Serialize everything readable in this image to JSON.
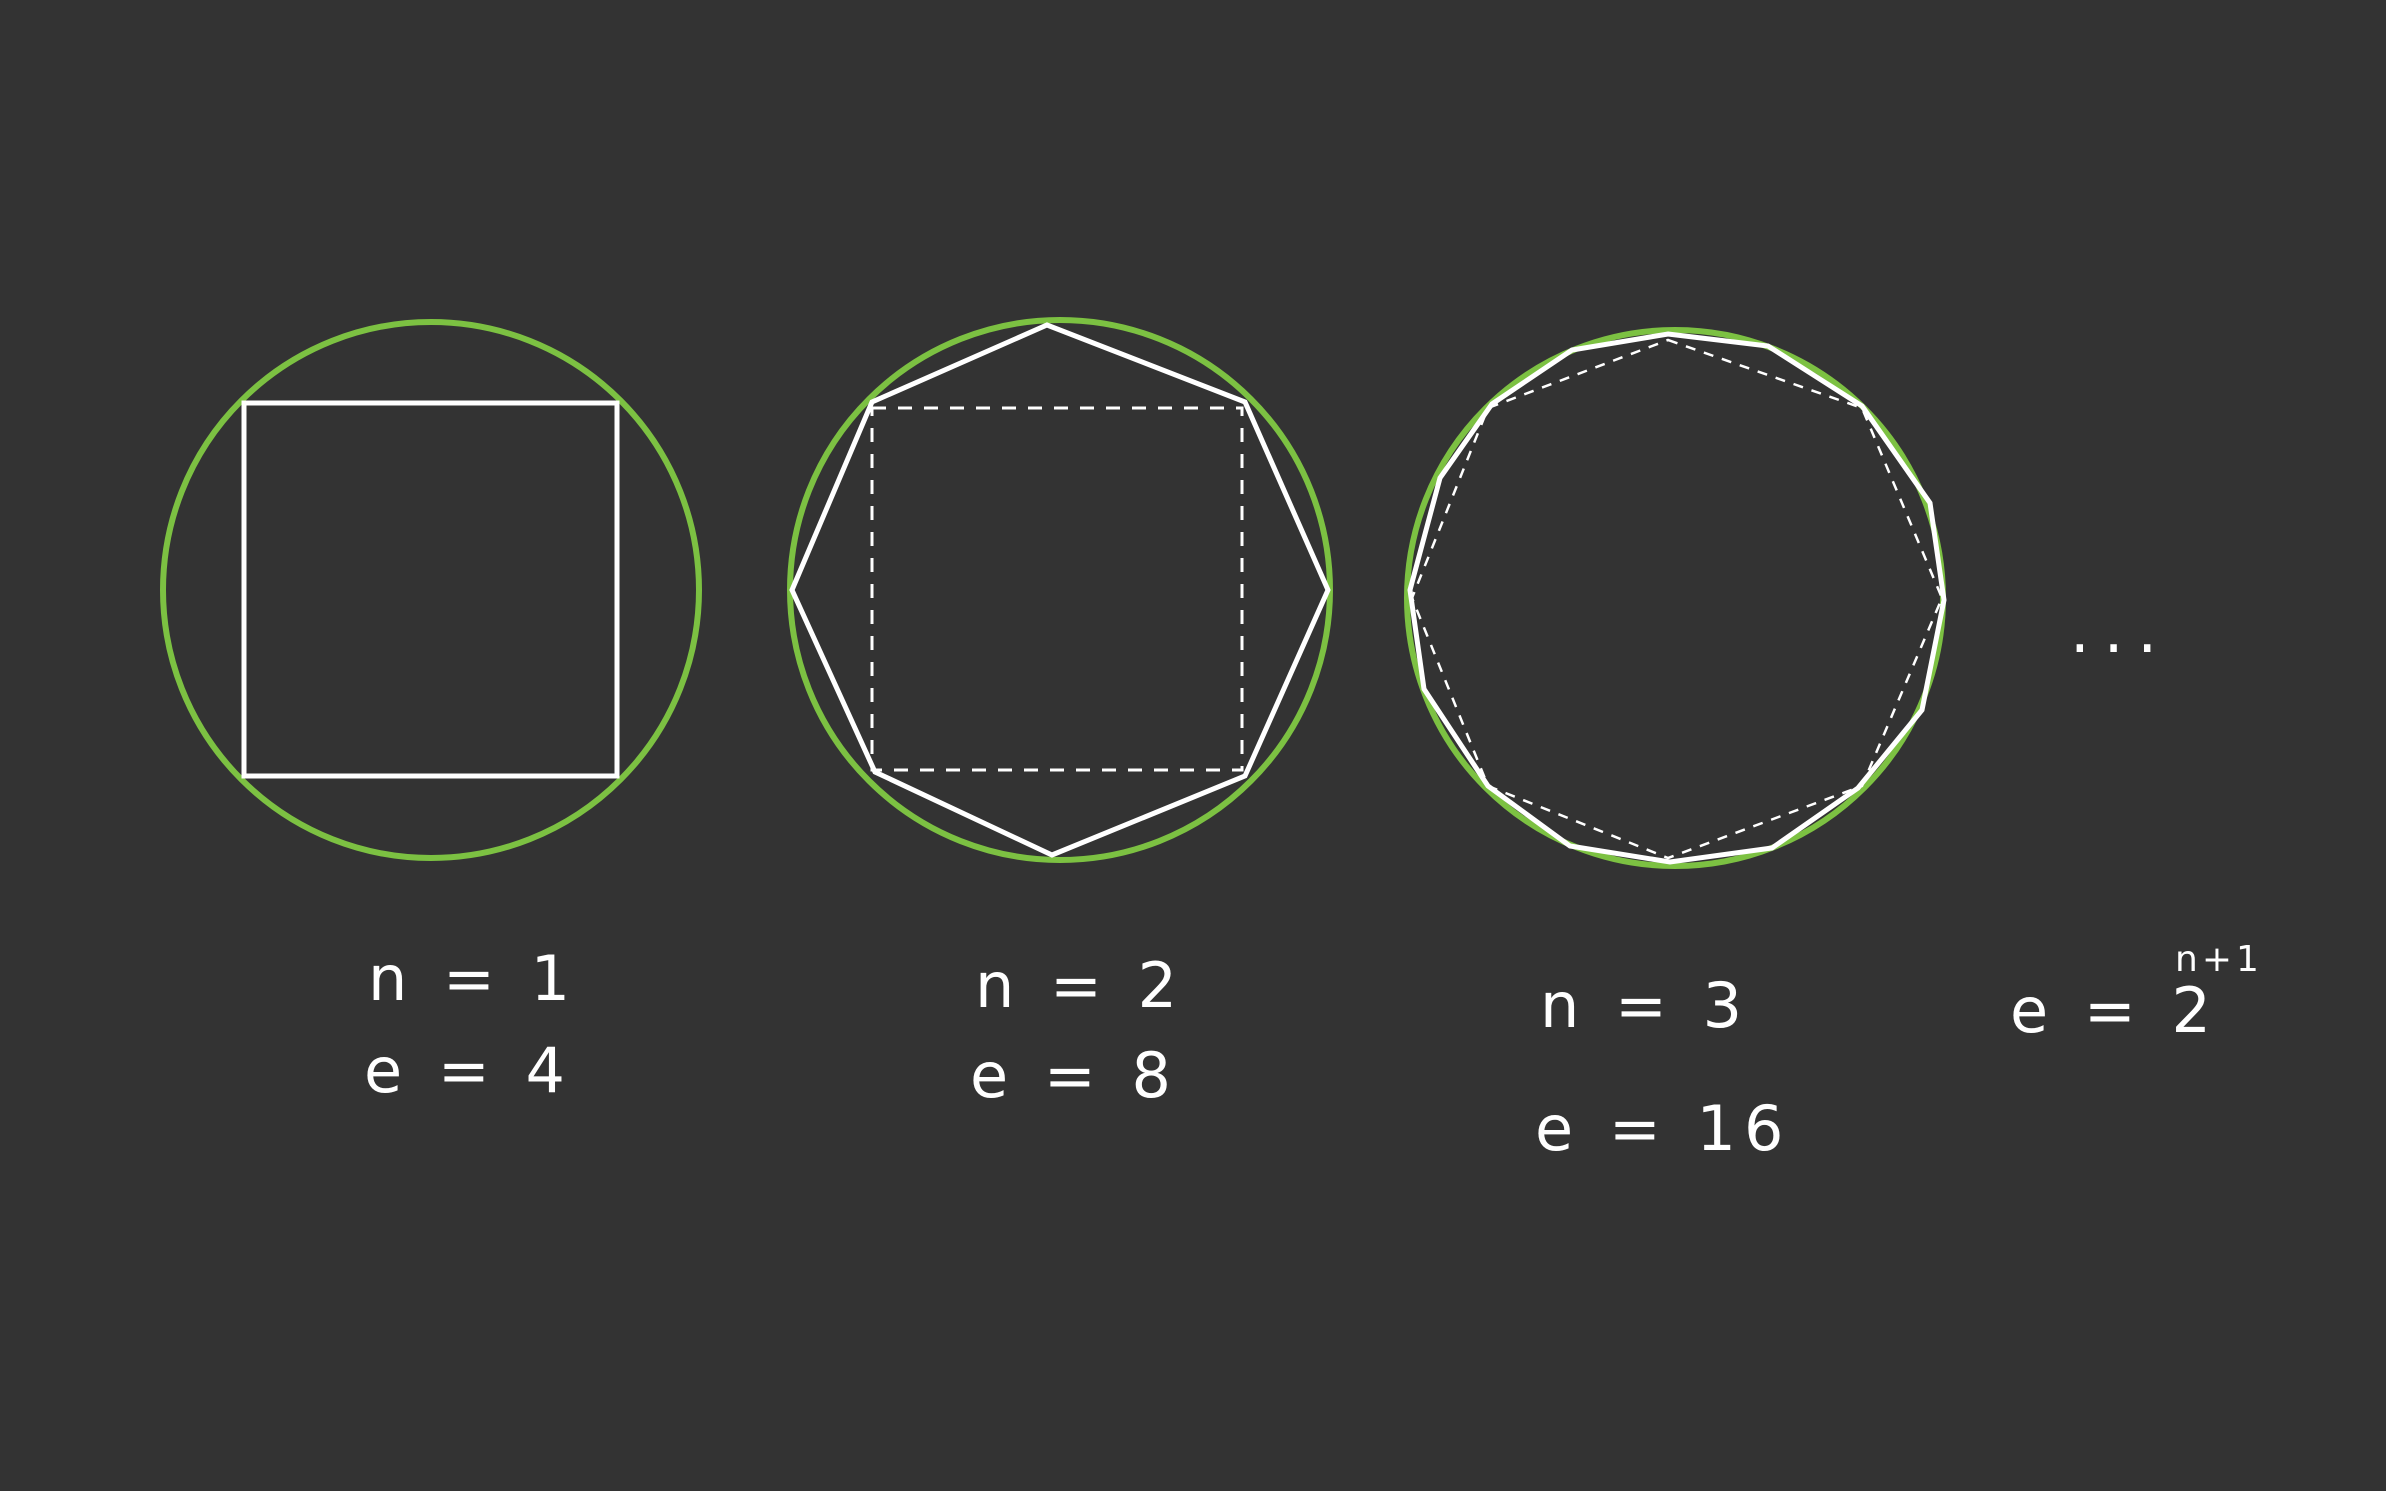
{
  "colors": {
    "background": "#333333",
    "circle": "#7cc142",
    "polygon": "#ffffff"
  },
  "figures": [
    {
      "polygon_edges": 4,
      "n_label": "n = 1",
      "e_label": "e = 4"
    },
    {
      "polygon_edges": 8,
      "n_label": "n = 2",
      "e_label": "e = 8"
    },
    {
      "polygon_edges": 16,
      "n_label": "n = 3",
      "e_label": "e = 16"
    }
  ],
  "continuation": {
    "ellipsis": "...",
    "formula_base": "e = 2",
    "formula_exponent": "n+1"
  }
}
